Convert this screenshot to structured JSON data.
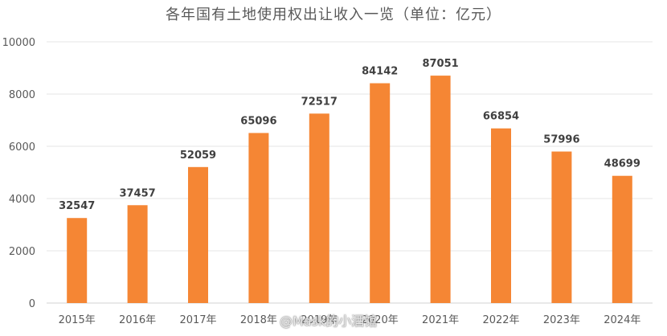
{
  "chart_data": {
    "type": "bar",
    "title": "各年国有土地使用权出让收入一览（单位：亿元）",
    "categories": [
      "2015年",
      "2016年",
      "2017年",
      "2018年",
      "2019年",
      "2020年",
      "2021年",
      "2022年",
      "2023年",
      "2024年"
    ],
    "values": [
      32547,
      37457,
      52059,
      65096,
      72517,
      84142,
      87051,
      66854,
      57996,
      48699
    ],
    "ylim": [
      0,
      10000
    ],
    "yticks": [
      0,
      2000,
      4000,
      6000,
      8000,
      10000
    ],
    "grid": true,
    "bar_color": "#F58634",
    "data_labels": true
  },
  "watermark": "@Mask的小酒馆"
}
